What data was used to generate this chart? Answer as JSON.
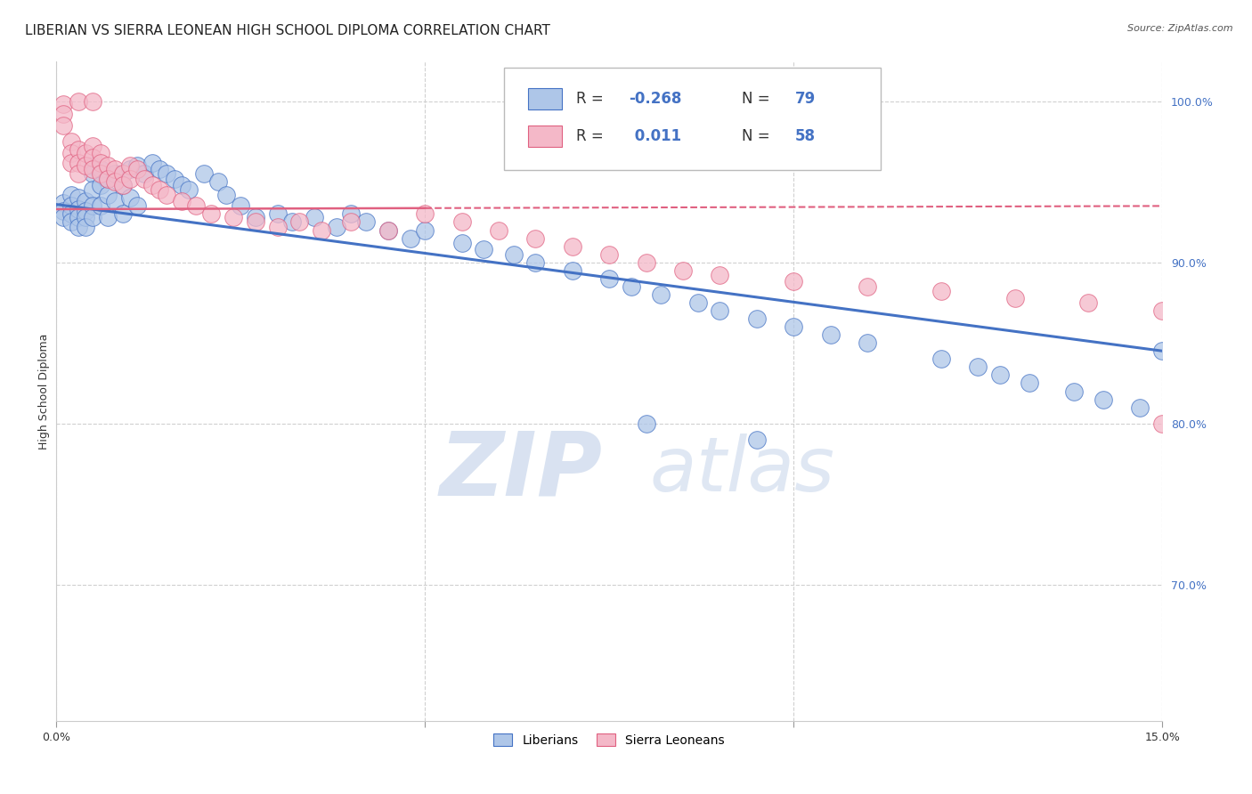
{
  "title": "LIBERIAN VS SIERRA LEONEAN HIGH SCHOOL DIPLOMA CORRELATION CHART",
  "source": "Source: ZipAtlas.com",
  "ylabel": "High School Diploma",
  "legend_liberian": "Liberians",
  "legend_sierra": "Sierra Leoneans",
  "liberian_color": "#aec6e8",
  "sierra_color": "#f4b8c8",
  "liberian_line_color": "#4472c4",
  "sierra_line_color": "#e06080",
  "watermark_zip": "ZIP",
  "watermark_atlas": "atlas",
  "xlim": [
    0.0,
    0.15
  ],
  "ylim": [
    0.615,
    1.025
  ],
  "yticks": [
    0.7,
    0.8,
    0.9,
    1.0
  ],
  "ytick_labels": [
    "70.0%",
    "80.0%",
    "90.0%",
    "100.0%"
  ],
  "xticks": [
    0.0,
    0.05,
    0.1,
    0.15
  ],
  "xtick_labels": [
    "0.0%",
    "",
    "",
    "15.0%"
  ],
  "liberian_trend_x": [
    0.0,
    0.15
  ],
  "liberian_trend_y": [
    0.936,
    0.845
  ],
  "sierra_trend_x": [
    0.0,
    0.15
  ],
  "sierra_trend_y": [
    0.933,
    0.935
  ],
  "background_color": "#ffffff",
  "grid_color": "#d0d0d0",
  "title_fontsize": 11,
  "axis_label_fontsize": 9,
  "tick_fontsize": 9,
  "liberian_x": [
    0.001,
    0.001,
    0.001,
    0.002,
    0.002,
    0.002,
    0.002,
    0.003,
    0.003,
    0.003,
    0.003,
    0.004,
    0.004,
    0.004,
    0.004,
    0.005,
    0.005,
    0.005,
    0.005,
    0.005,
    0.006,
    0.006,
    0.006,
    0.007,
    0.007,
    0.007,
    0.008,
    0.008,
    0.009,
    0.009,
    0.01,
    0.01,
    0.011,
    0.011,
    0.012,
    0.013,
    0.014,
    0.015,
    0.016,
    0.017,
    0.018,
    0.02,
    0.022,
    0.023,
    0.025,
    0.027,
    0.03,
    0.032,
    0.035,
    0.038,
    0.04,
    0.042,
    0.045,
    0.048,
    0.05,
    0.055,
    0.058,
    0.062,
    0.065,
    0.07,
    0.075,
    0.078,
    0.082,
    0.087,
    0.09,
    0.095,
    0.1,
    0.105,
    0.11,
    0.12,
    0.125,
    0.128,
    0.132,
    0.138,
    0.142,
    0.147,
    0.15,
    0.095,
    0.08
  ],
  "liberian_y": [
    0.937,
    0.932,
    0.928,
    0.942,
    0.935,
    0.93,
    0.925,
    0.94,
    0.933,
    0.928,
    0.922,
    0.938,
    0.932,
    0.928,
    0.922,
    0.96,
    0.955,
    0.945,
    0.935,
    0.928,
    0.958,
    0.948,
    0.935,
    0.952,
    0.942,
    0.928,
    0.955,
    0.938,
    0.948,
    0.93,
    0.958,
    0.94,
    0.96,
    0.935,
    0.955,
    0.962,
    0.958,
    0.955,
    0.952,
    0.948,
    0.945,
    0.955,
    0.95,
    0.942,
    0.935,
    0.928,
    0.93,
    0.925,
    0.928,
    0.922,
    0.93,
    0.925,
    0.92,
    0.915,
    0.92,
    0.912,
    0.908,
    0.905,
    0.9,
    0.895,
    0.89,
    0.885,
    0.88,
    0.875,
    0.87,
    0.865,
    0.86,
    0.855,
    0.85,
    0.84,
    0.835,
    0.83,
    0.825,
    0.82,
    0.815,
    0.81,
    0.845,
    0.79,
    0.8
  ],
  "sierra_x": [
    0.001,
    0.001,
    0.001,
    0.002,
    0.002,
    0.002,
    0.003,
    0.003,
    0.003,
    0.004,
    0.004,
    0.005,
    0.005,
    0.005,
    0.006,
    0.006,
    0.006,
    0.007,
    0.007,
    0.008,
    0.008,
    0.009,
    0.009,
    0.01,
    0.01,
    0.011,
    0.012,
    0.013,
    0.014,
    0.015,
    0.017,
    0.019,
    0.021,
    0.024,
    0.027,
    0.03,
    0.033,
    0.036,
    0.04,
    0.045,
    0.05,
    0.055,
    0.06,
    0.065,
    0.07,
    0.075,
    0.08,
    0.085,
    0.09,
    0.1,
    0.11,
    0.12,
    0.13,
    0.14,
    0.15,
    0.003,
    0.005,
    0.15
  ],
  "sierra_y": [
    0.998,
    0.992,
    0.985,
    0.975,
    0.968,
    0.962,
    0.97,
    0.962,
    0.955,
    0.968,
    0.96,
    0.972,
    0.965,
    0.958,
    0.968,
    0.962,
    0.955,
    0.96,
    0.952,
    0.958,
    0.95,
    0.955,
    0.948,
    0.96,
    0.952,
    0.958,
    0.952,
    0.948,
    0.945,
    0.942,
    0.938,
    0.935,
    0.93,
    0.928,
    0.925,
    0.922,
    0.925,
    0.92,
    0.925,
    0.92,
    0.93,
    0.925,
    0.92,
    0.915,
    0.91,
    0.905,
    0.9,
    0.895,
    0.892,
    0.888,
    0.885,
    0.882,
    0.878,
    0.875,
    0.87,
    1.0,
    1.0,
    0.8
  ]
}
